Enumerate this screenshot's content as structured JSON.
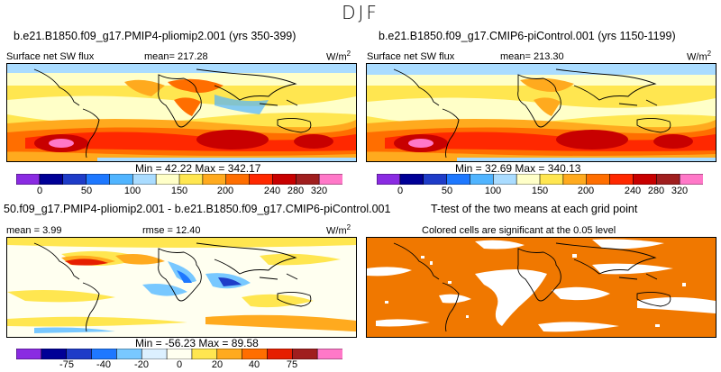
{
  "header": {
    "season": "DJF"
  },
  "chart_data": [
    {
      "type": "heatmap",
      "title": "b.e21.B1850.f09_g17.PMIP4-pliomip2.001 (yrs 350-399)",
      "variable": "Surface net SW flux",
      "mean_label": "mean=",
      "mean": "217.28",
      "units": "W/m",
      "units_exp": "2",
      "min_label": "Min =",
      "min": "42.22",
      "max_label": "Max =",
      "max": "342.17",
      "colorbar_ticks": [
        "0",
        "50",
        "100",
        "150",
        "200",
        "240",
        "280",
        "320"
      ]
    },
    {
      "type": "heatmap",
      "title": "b.e21.B1850.f09_g17.CMIP6-piControl.001 (yrs 1150-1199)",
      "variable": "Surface net SW flux",
      "mean_label": "mean=",
      "mean": "213.30",
      "units": "W/m",
      "units_exp": "2",
      "min_label": "Min =",
      "min": "32.69",
      "max_label": "Max =",
      "max": "340.13",
      "colorbar_ticks": [
        "0",
        "50",
        "100",
        "150",
        "200",
        "240",
        "280",
        "320"
      ]
    },
    {
      "type": "heatmap",
      "title": "50.f09_g17.PMIP4-pliomip2.001 - b.e21.B1850.f09_g17.CMIP6-piControl.001",
      "mean_label": "mean =",
      "mean": "3.99",
      "rmse_label": "rmse =",
      "rmse": "12.40",
      "units": "W/m",
      "units_exp": "2",
      "min_label": "Min =",
      "min": "-56.23",
      "max_label": "Max =",
      "max": "89.58",
      "colorbar_ticks": [
        "-75",
        "-40",
        "-20",
        "0",
        "20",
        "40",
        "75"
      ]
    },
    {
      "type": "heatmap",
      "title": "T-test of the two means at each grid point",
      "subtitle": "Colored cells are significant at the 0.05 level",
      "significant_color": "#f07800"
    }
  ],
  "colors": {
    "sw_scale": [
      "#8a2be2",
      "#000096",
      "#1e3cc8",
      "#1e78ff",
      "#50b4ff",
      "#aadcff",
      "#ffffc8",
      "#ffe650",
      "#ffaa1e",
      "#ff6e00",
      "#ff2800",
      "#c80000",
      "#a01e1e",
      "#ff78c8"
    ],
    "diff_scale": [
      "#8a2be2",
      "#000096",
      "#1e3cc8",
      "#1e78ff",
      "#78c8ff",
      "#dcf0ff",
      "#fffff0",
      "#ffe650",
      "#ffaa1e",
      "#ff6e00",
      "#e61e00",
      "#a01e1e",
      "#ff78c8"
    ]
  }
}
